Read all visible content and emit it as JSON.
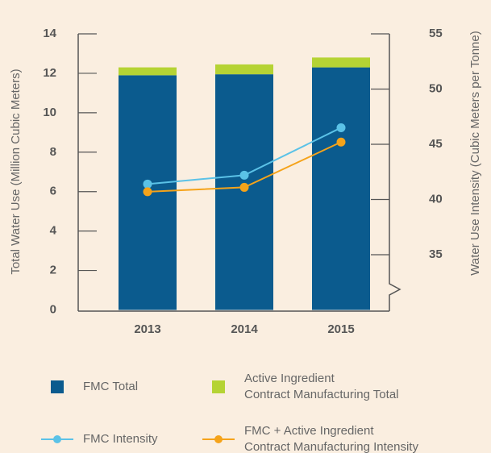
{
  "chart_data": {
    "type": "bar",
    "stacked": true,
    "categories": [
      "2013",
      "2014",
      "2015"
    ],
    "ylabel": "Total Water Use (Million Cubic Meters)",
    "y2label": "Water Use Intensity (Cubic Meters per Tonne)",
    "ylim": [
      0,
      14
    ],
    "yticks": [
      0,
      2,
      4,
      6,
      8,
      10,
      12,
      14
    ],
    "y2lim": [
      30,
      55
    ],
    "y2ticks": [
      35,
      40,
      45,
      50,
      55
    ],
    "series": [
      {
        "name": "FMC Total",
        "color": "#0b5b8e",
        "values": [
          11.9,
          11.95,
          12.3
        ]
      },
      {
        "name": "Active Ingredient\nContract Manufacturing Total",
        "color": "#b5d334",
        "values": [
          0.4,
          0.5,
          0.5
        ]
      },
      {
        "name": "FMC Intensity",
        "color": "#5bc2e7",
        "type": "line",
        "axis": "y2",
        "values": [
          41.4,
          42.2,
          46.5
        ]
      },
      {
        "name": "FMC + Active Ingredient\nContract Manufacturing Intensity",
        "color": "#f5a31a",
        "type": "line",
        "axis": "y2",
        "values": [
          40.7,
          41.1,
          45.2
        ]
      }
    ]
  }
}
